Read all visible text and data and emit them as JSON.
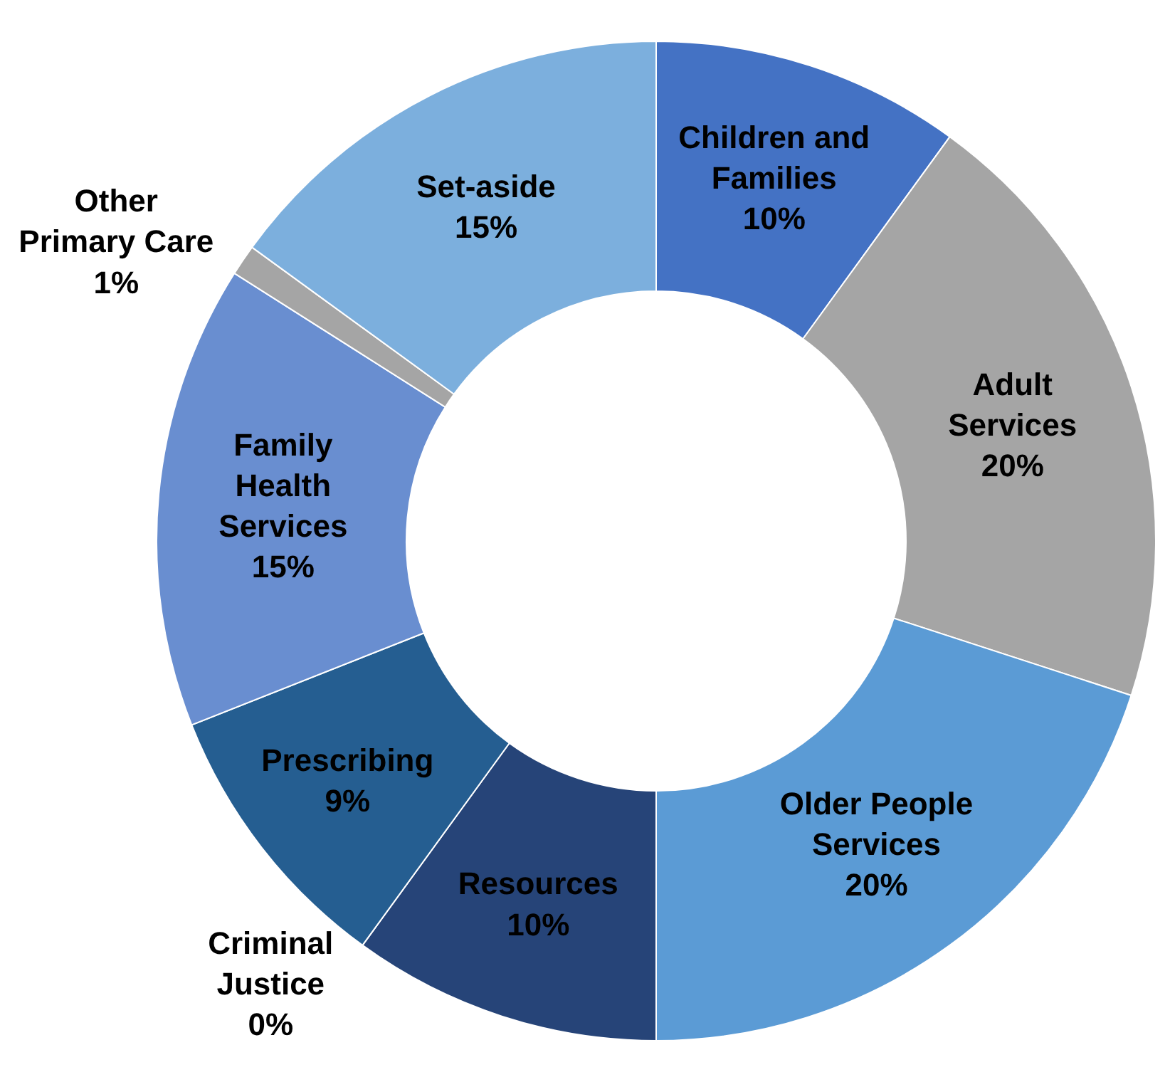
{
  "chart_data": {
    "type": "donut",
    "categories": [
      "Children and Families",
      "Adult Services",
      "Older People Services",
      "Resources",
      "Criminal Justice",
      "Prescribing",
      "Family Health Services",
      "Other Primary Care",
      "Set-aside"
    ],
    "values": [
      10,
      20,
      20,
      10,
      0,
      9,
      15,
      1,
      15
    ],
    "value_labels": [
      "10%",
      "20%",
      "20%",
      "10%",
      "0%",
      "9%",
      "15%",
      "1%",
      "15%"
    ],
    "colors": [
      "#4472c4",
      "#a5a5a5",
      "#5b9bd5",
      "#264478",
      "#636363",
      "#255e91",
      "#698ed0",
      "#a5a5a5",
      "#7cafdd"
    ],
    "legend": false
  }
}
